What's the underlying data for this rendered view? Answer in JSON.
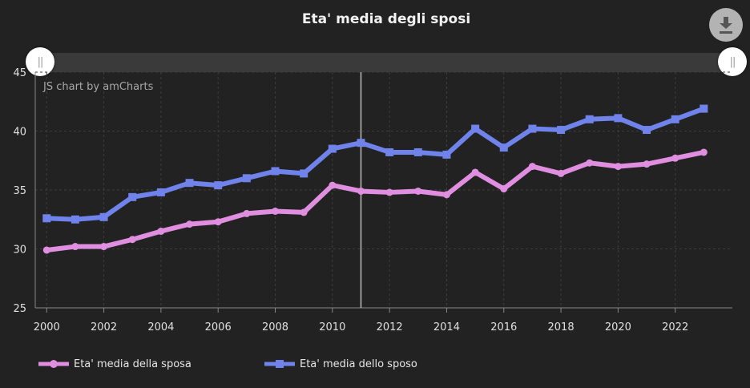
{
  "chart_data": {
    "type": "line",
    "title": "Eta' media degli sposi",
    "credit": "JS chart by amCharts",
    "x": [
      2000,
      2001,
      2002,
      2003,
      2004,
      2005,
      2006,
      2007,
      2008,
      2009,
      2010,
      2011,
      2012,
      2013,
      2014,
      2015,
      2016,
      2017,
      2018,
      2019,
      2020,
      2021,
      2022,
      2023
    ],
    "x_ticks": [
      "2000",
      "2002",
      "2004",
      "2006",
      "2008",
      "2010",
      "2012",
      "2014",
      "2016",
      "2018",
      "2020",
      "2022"
    ],
    "y_ticks": [
      "25",
      "30",
      "35",
      "40",
      "45"
    ],
    "ylim": [
      25,
      45
    ],
    "xlim": [
      1999.6,
      2024.0
    ],
    "grid": true,
    "cursor_x": 2011,
    "legend_position": "bottom-left",
    "series": [
      {
        "name": "Eta' media della sposa",
        "color": "#e08ee0",
        "marker": "circle",
        "values": [
          29.9,
          30.2,
          30.2,
          30.8,
          31.5,
          32.1,
          32.3,
          33.0,
          33.2,
          33.1,
          35.4,
          34.9,
          34.8,
          34.9,
          34.6,
          36.5,
          35.1,
          37.0,
          36.4,
          37.3,
          37.0,
          37.2,
          37.7,
          38.2
        ]
      },
      {
        "name": "Eta' media dello sposo",
        "color": "#6f83ea",
        "marker": "square",
        "values": [
          32.6,
          32.5,
          32.7,
          34.4,
          34.8,
          35.6,
          35.4,
          36.0,
          36.6,
          36.4,
          38.5,
          39.0,
          38.2,
          38.2,
          38.0,
          40.2,
          38.6,
          40.2,
          40.1,
          41.0,
          41.1,
          40.1,
          41.0,
          41.9
        ]
      }
    ]
  },
  "controls": {
    "download_icon": "download-icon",
    "grip_label": "||"
  }
}
